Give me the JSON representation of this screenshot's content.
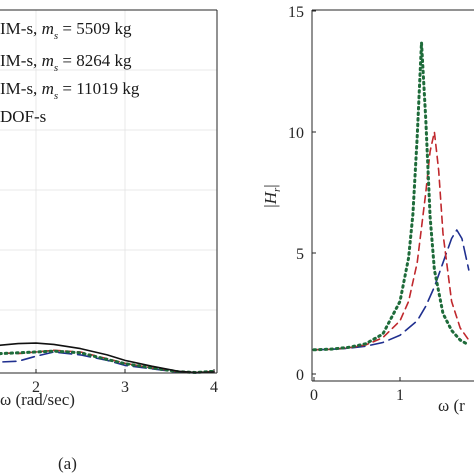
{
  "chart_data": [
    {
      "type": "line",
      "panel_label": "(a)",
      "xlabel_tail": "ω (rad/sec)",
      "xlim": [
        0,
        4
      ],
      "x_ticks": [
        "2",
        "3",
        "4"
      ],
      "grid": true,
      "legend_position": "top-left",
      "legend": [
        {
          "text": "IM-s,  m",
          "sub": "s",
          "tail": " = 5509 kg"
        },
        {
          "text": "IM-s,  m",
          "sub": "s",
          "tail": " = 8264 kg"
        },
        {
          "text": "IM-s,  m",
          "sub": "s",
          "tail": " = 11019 kg"
        },
        {
          "text": "DOF-s",
          "sub": "",
          "tail": ""
        }
      ],
      "series": [
        {
          "color": "#1f2f8f",
          "style": "long-dash",
          "x": [
            1.0,
            1.2,
            1.4,
            1.6,
            1.8,
            2.0,
            2.2,
            2.5,
            2.8,
            3.0,
            3.3,
            3.6,
            3.8,
            4.0
          ],
          "y": [
            0.55,
            0.58,
            0.5,
            0.38,
            0.4,
            0.52,
            0.62,
            0.55,
            0.42,
            0.3,
            0.22,
            0.14,
            0.12,
            0.15
          ]
        },
        {
          "color": "#c0282d",
          "style": "dash",
          "x": [
            1.0,
            1.2,
            1.4,
            1.6,
            1.8,
            2.0,
            2.2,
            2.5,
            2.8,
            3.0,
            3.3,
            3.6,
            3.8,
            4.0
          ],
          "y": [
            0.65,
            0.5,
            0.56,
            0.6,
            0.58,
            0.62,
            0.66,
            0.62,
            0.46,
            0.35,
            0.24,
            0.15,
            0.13,
            0.16
          ]
        },
        {
          "color": "#1e6b3a",
          "style": "dot",
          "x": [
            1.0,
            1.2,
            1.4,
            1.6,
            1.8,
            2.0,
            2.2,
            2.5,
            2.8,
            3.0,
            3.3,
            3.6,
            3.8,
            4.0
          ],
          "y": [
            0.8,
            0.55,
            0.5,
            0.58,
            0.6,
            0.62,
            0.64,
            0.6,
            0.44,
            0.34,
            0.24,
            0.15,
            0.13,
            0.16
          ]
        },
        {
          "color": "#111111",
          "style": "solid",
          "x": [
            1.0,
            1.2,
            1.4,
            1.6,
            1.8,
            2.0,
            2.2,
            2.5,
            2.8,
            3.0,
            3.3,
            3.6,
            3.8,
            4.0
          ],
          "y": [
            0.45,
            0.55,
            0.68,
            0.78,
            0.82,
            0.83,
            0.8,
            0.7,
            0.55,
            0.42,
            0.28,
            0.16,
            0.13,
            0.14
          ]
        }
      ]
    },
    {
      "type": "line",
      "ylabel": "|H_r|",
      "xlabel_head": "ω (r",
      "xlim": [
        0,
        1.8
      ],
      "ylim": [
        0,
        15
      ],
      "x_ticks": [
        "0",
        "1"
      ],
      "y_ticks": [
        "0",
        "5",
        "10",
        "15"
      ],
      "grid": false,
      "series": [
        {
          "color": "#1f2f8f",
          "style": "long-dash",
          "x": [
            0,
            0.2,
            0.4,
            0.6,
            0.8,
            1.0,
            1.2,
            1.3,
            1.4,
            1.5,
            1.6,
            1.66,
            1.72,
            1.8
          ],
          "y": [
            1.0,
            1.02,
            1.06,
            1.15,
            1.3,
            1.6,
            2.2,
            2.8,
            3.6,
            4.6,
            5.6,
            5.95,
            5.6,
            4.3
          ]
        },
        {
          "color": "#c0282d",
          "style": "dash",
          "x": [
            0,
            0.2,
            0.4,
            0.6,
            0.8,
            1.0,
            1.1,
            1.2,
            1.3,
            1.35,
            1.4,
            1.45,
            1.5,
            1.6,
            1.7,
            1.8
          ],
          "y": [
            1.0,
            1.02,
            1.08,
            1.2,
            1.5,
            2.2,
            3.0,
            4.6,
            7.5,
            9.2,
            10.0,
            8.4,
            5.8,
            3.0,
            1.9,
            1.4
          ]
        },
        {
          "color": "#1e6b3a",
          "style": "dot",
          "x": [
            0,
            0.2,
            0.4,
            0.6,
            0.8,
            1.0,
            1.1,
            1.15,
            1.2,
            1.25,
            1.3,
            1.35,
            1.4,
            1.5,
            1.6,
            1.7,
            1.8
          ],
          "y": [
            1.0,
            1.03,
            1.1,
            1.25,
            1.65,
            3.0,
            4.8,
            6.6,
            9.8,
            13.7,
            10.5,
            6.5,
            4.3,
            2.5,
            1.8,
            1.4,
            1.2
          ]
        }
      ]
    }
  ]
}
